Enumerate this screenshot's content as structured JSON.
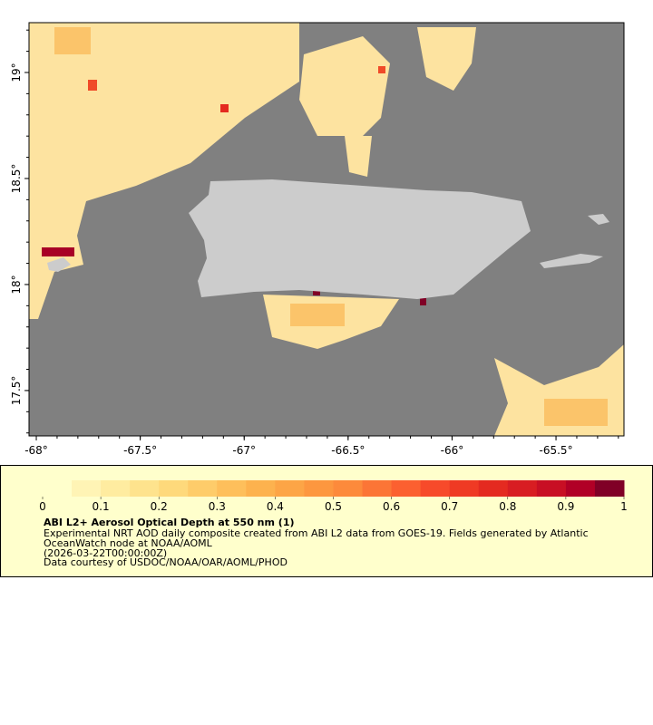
{
  "map": {
    "xlim": [
      -68.035,
      -65.173
    ],
    "ylim": [
      17.286,
      19.235
    ],
    "xticks": [
      {
        "value": -68,
        "label": "-68°"
      },
      {
        "value": -67.5,
        "label": "-67.5°"
      },
      {
        "value": -67,
        "label": "-67°"
      },
      {
        "value": -66.5,
        "label": "-66.5°"
      },
      {
        "value": -66,
        "label": "-66°"
      },
      {
        "value": -65.5,
        "label": "-65.5°"
      }
    ],
    "yticks": [
      {
        "value": 17.5,
        "label": "17.5°"
      },
      {
        "value": 18,
        "label": "18°"
      },
      {
        "value": 18.5,
        "label": "18.5°"
      },
      {
        "value": 19,
        "label": "19°"
      }
    ]
  },
  "colorbar": {
    "range": [
      0,
      1
    ],
    "ticks": [
      0,
      0.1,
      0.2,
      0.3,
      0.4,
      0.5,
      0.6,
      0.7,
      0.8,
      0.9,
      1
    ],
    "colors": [
      "#ffffcc",
      "#fff4b5",
      "#ffeca0",
      "#fee38d",
      "#fed97b",
      "#fecc6a",
      "#febf5b",
      "#fdb24e",
      "#fda546",
      "#fd973f",
      "#fd8a3b",
      "#fc7536",
      "#fc6030",
      "#f74a2a",
      "#ef3a24",
      "#e42a20",
      "#d81d22",
      "#c80f24",
      "#b10026",
      "#800026"
    ]
  },
  "caption": {
    "title": "ABI L2+ Aerosol Optical Depth at 550 nm (1)",
    "lines": [
      "Experimental NRT AOD daily composite created from ABI L2 data from GOES-19. Fields generated by Atlantic",
      "OceanWatch node at NOAA/AOML",
      "(2026-03-22T00:00:00Z)",
      "Data courtesy of USDOC/NOAA/OAR/AOML/PHOD"
    ]
  }
}
